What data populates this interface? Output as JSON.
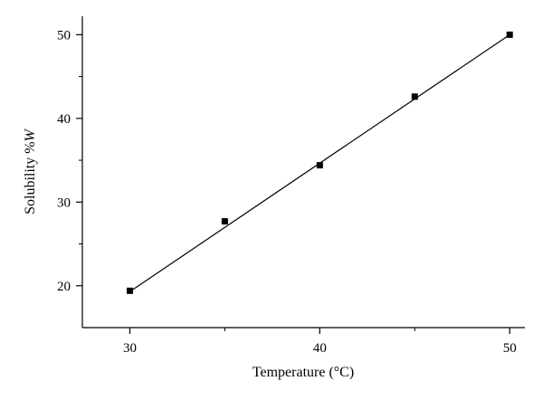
{
  "chart_data": {
    "type": "scatter",
    "xlabel": "Temperature (°C)",
    "ylabel_prefix": "Solubility %",
    "ylabel_var": "W",
    "xlim": [
      27.5,
      50.8
    ],
    "ylim": [
      15,
      52.2
    ],
    "x_ticks": [
      30,
      40,
      50
    ],
    "x_minor_ticks": [
      35,
      45
    ],
    "y_ticks": [
      20,
      30,
      40,
      50
    ],
    "y_minor_ticks": [
      25,
      35,
      45
    ],
    "x_tick_labels": [
      "30",
      "40",
      "50"
    ],
    "y_tick_labels": [
      "20",
      "30",
      "40",
      "50"
    ],
    "series": [
      {
        "x": [
          30,
          35,
          40,
          45,
          50
        ],
        "y": [
          19.4,
          27.7,
          34.4,
          42.6,
          50.0
        ]
      }
    ],
    "fit_line": {
      "x": [
        30,
        50
      ],
      "y": [
        19.3,
        50.0
      ]
    },
    "grid": false,
    "colors": {
      "marker": "#000000",
      "line": "#000000",
      "axis": "#000000"
    }
  }
}
